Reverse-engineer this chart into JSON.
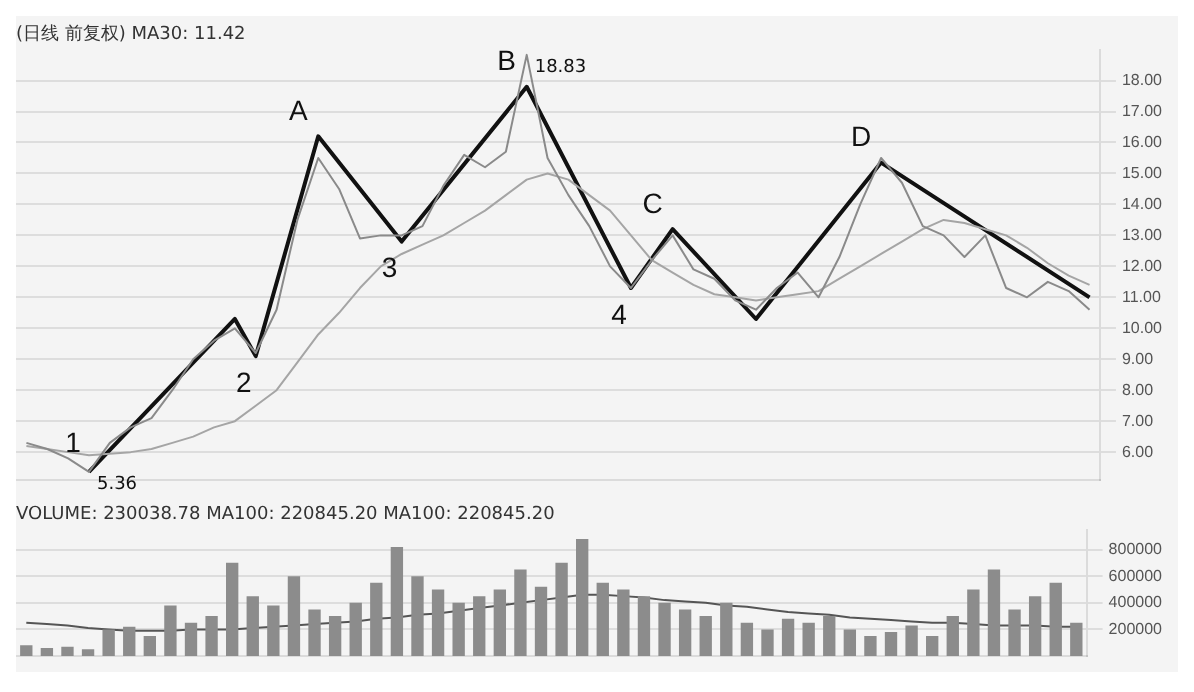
{
  "chart_data": [
    {
      "type": "line",
      "title": "(日线 前复权) MA30: 11.42",
      "ylim": [
        5.1,
        19.0
      ],
      "tick_labels": "y",
      "grid": "y",
      "legend": false,
      "categories": [
        null,
        null,
        null,
        null,
        null,
        null,
        null,
        null,
        null,
        null,
        null,
        null,
        null,
        null,
        null,
        null,
        null,
        null,
        null,
        null,
        null,
        null,
        null,
        null,
        null,
        null,
        null,
        null,
        null,
        null,
        null,
        null,
        null,
        null,
        null,
        null,
        null,
        null,
        null,
        null,
        null,
        null,
        null,
        null,
        null,
        null,
        null,
        null,
        null,
        null,
        null,
        null
      ],
      "yticks": [
        {
          "value": 6,
          "label": "6.00"
        },
        {
          "value": 7,
          "label": "7.00"
        },
        {
          "value": 8,
          "label": "8.00"
        },
        {
          "value": 9,
          "label": "9.00"
        },
        {
          "value": 10,
          "label": "10.00"
        },
        {
          "value": 11,
          "label": "11.00"
        },
        {
          "value": 12,
          "label": "12.00"
        },
        {
          "value": 13,
          "label": "13.00"
        },
        {
          "value": 14,
          "label": "14.00"
        },
        {
          "value": 15,
          "label": "15.00"
        },
        {
          "value": 16,
          "label": "16.00"
        },
        {
          "value": 17,
          "label": "17.00"
        },
        {
          "value": 18,
          "label": "18.00"
        }
      ],
      "series": [
        {
          "color": "#8a8a8a",
          "values": [
            6.3,
            6.1,
            5.8,
            5.36,
            6.3,
            6.8,
            7.1,
            8.0,
            9.0,
            9.6,
            10.0,
            9.2,
            10.6,
            13.5,
            15.5,
            14.5,
            12.9,
            13.0,
            13.0,
            13.3,
            14.6,
            15.6,
            15.2,
            15.7,
            18.83,
            15.5,
            14.3,
            13.3,
            12.0,
            11.3,
            12.2,
            13.0,
            11.9,
            11.6,
            10.9,
            10.6,
            11.3,
            11.8,
            11.0,
            12.3,
            14.0,
            15.5,
            14.7,
            13.3,
            13.0,
            12.3,
            13.0,
            11.3,
            11.0,
            11.5,
            11.2,
            10.6
          ]
        },
        {
          "color": "#a5a5a5",
          "values": [
            6.2,
            6.1,
            6.0,
            5.9,
            5.95,
            6.0,
            6.1,
            6.3,
            6.5,
            6.8,
            7.0,
            7.5,
            8.0,
            8.9,
            9.8,
            10.5,
            11.3,
            12.0,
            12.4,
            12.7,
            13.0,
            13.4,
            13.8,
            14.3,
            14.8,
            15.0,
            14.8,
            14.3,
            13.8,
            13.0,
            12.2,
            11.8,
            11.4,
            11.1,
            11.0,
            10.9,
            11.0,
            11.1,
            11.2,
            11.6,
            12.0,
            12.4,
            12.8,
            13.2,
            13.5,
            13.4,
            13.2,
            13.0,
            12.6,
            12.1,
            11.7,
            11.4
          ]
        },
        {
          "color": "#111111",
          "values": [
            null,
            null,
            null,
            5.36,
            null,
            null,
            null,
            null,
            null,
            null,
            10.3,
            9.1,
            null,
            null,
            16.2,
            null,
            null,
            null,
            12.8,
            null,
            null,
            null,
            null,
            null,
            17.8,
            null,
            null,
            null,
            null,
            11.3,
            null,
            13.2,
            null,
            null,
            null,
            10.3,
            null,
            null,
            null,
            null,
            null,
            15.35,
            null,
            null,
            null,
            null,
            null,
            null,
            null,
            null,
            null,
            11.0
          ]
        }
      ],
      "annotations": [
        "1",
        "2",
        "A",
        "3",
        "B",
        "4",
        "C",
        "D",
        "5.36",
        "18.83"
      ]
    },
    {
      "type": "bar",
      "title": "VOLUME: 230038.78 MA100: 220845.20 MA100: 220845.20",
      "ylim": [
        0,
        950000
      ],
      "tick_labels": "y",
      "grid": "y",
      "legend": false,
      "categories": [
        null,
        null,
        null,
        null,
        null,
        null,
        null,
        null,
        null,
        null,
        null,
        null,
        null,
        null,
        null,
        null,
        null,
        null,
        null,
        null,
        null,
        null,
        null,
        null,
        null,
        null,
        null,
        null,
        null,
        null,
        null,
        null,
        null,
        null,
        null,
        null,
        null,
        null,
        null,
        null,
        null,
        null,
        null,
        null,
        null,
        null,
        null,
        null,
        null,
        null,
        null,
        null
      ],
      "yticks": [
        200000,
        400000,
        600000,
        800000
      ],
      "series": [
        {
          "color": "#8c8c8c",
          "values": [
            80000,
            60000,
            70000,
            50000,
            200000,
            220000,
            150000,
            380000,
            250000,
            300000,
            700000,
            450000,
            380000,
            600000,
            350000,
            300000,
            400000,
            550000,
            820000,
            600000,
            500000,
            400000,
            450000,
            500000,
            650000,
            520000,
            700000,
            880000,
            550000,
            500000,
            450000,
            400000,
            350000,
            300000,
            400000,
            250000,
            200000,
            280000,
            250000,
            300000,
            200000,
            150000,
            180000,
            230000,
            150000,
            300000,
            500000,
            650000,
            350000,
            450000,
            550000,
            250000
          ]
        },
        {
          "type": "line",
          "color": "#555555",
          "values": [
            250000,
            240000,
            230000,
            210000,
            200000,
            190000,
            190000,
            190000,
            200000,
            200000,
            200000,
            210000,
            220000,
            230000,
            240000,
            250000,
            260000,
            280000,
            290000,
            310000,
            320000,
            340000,
            360000,
            380000,
            400000,
            420000,
            440000,
            460000,
            460000,
            450000,
            440000,
            420000,
            410000,
            400000,
            380000,
            370000,
            350000,
            330000,
            320000,
            310000,
            290000,
            280000,
            270000,
            260000,
            250000,
            250000,
            240000,
            230000,
            230000,
            230000,
            220000,
            220000
          ]
        }
      ]
    }
  ]
}
